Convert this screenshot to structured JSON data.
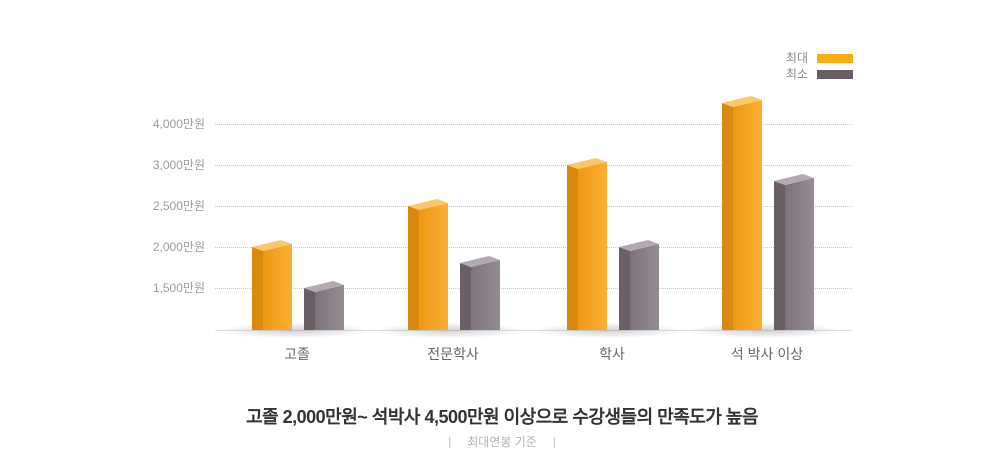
{
  "page": {
    "background": "#ffffff"
  },
  "legend": {
    "items": [
      {
        "label": "최대",
        "color": "#fbac0f"
      },
      {
        "label": "최소",
        "color": "#6a5e66"
      }
    ]
  },
  "chart_data": {
    "type": "bar",
    "style": "pseudo-3d columns",
    "categories": [
      "고졸",
      "전문학사",
      "학사",
      "석 박사 이상"
    ],
    "series": [
      {
        "name": "최대",
        "values": [
          2000,
          2500,
          3000,
          4500
        ]
      },
      {
        "name": "최소",
        "values": [
          1500,
          1800,
          2000,
          2800
        ]
      }
    ],
    "unit": "만원",
    "y_ticks": [
      {
        "label": "4,000만원",
        "value": 4000
      },
      {
        "label": "3,000만원",
        "value": 3000
      },
      {
        "label": "2,500만원",
        "value": 2500
      },
      {
        "label": "2,000만원",
        "value": 2000
      },
      {
        "label": "1,500만원",
        "value": 1500
      }
    ],
    "ylim": [
      1000,
      4700
    ],
    "grid": "horizontal dotted lines, solid light baseline",
    "legend_position": "top-right",
    "xlabel": "",
    "ylabel": ""
  },
  "colors": {
    "max_front_light": "#fbaf33",
    "max_front_dark": "#ee9813",
    "max_side": "#d8890e",
    "max_top": "#fbc76a",
    "min_front_light": "#958b92",
    "min_front_dark": "#7e737b",
    "min_side": "#6b5f66",
    "min_top": "#b3aab1",
    "grid": "#c9c9c9",
    "baseline": "#e0e0e0",
    "ytick_label": "#9b9b9b",
    "category_label": "#666666",
    "title": "#333333",
    "caption": "#b3b3b3"
  },
  "footer": {
    "title": "고졸 2,000만원~ 석박사 4,500만원 이상으로 수강생들의 만족도가 높음",
    "caption_bar": "|",
    "caption_text": "최대연봉 기준"
  }
}
